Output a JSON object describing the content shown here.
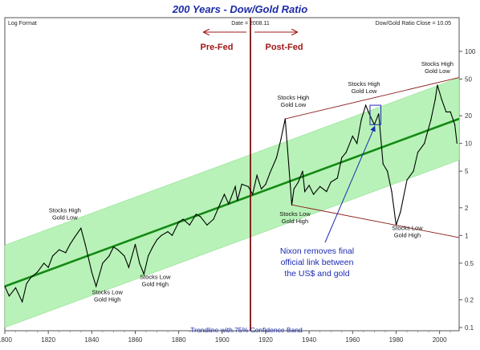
{
  "chart_data": {
    "type": "line",
    "title": "200 Years - Dow/Gold Ratio",
    "scale_label": "Log Format",
    "date_readout": "Date = 2008.11",
    "close_readout": "Dow/Gold Ratio Close = 10.05",
    "y_scale": "log",
    "ylim": [
      0.1,
      100
    ],
    "xlim": [
      1800,
      2009
    ],
    "x_ticks": [
      1800,
      1820,
      1840,
      1860,
      1880,
      1900,
      1920,
      1940,
      1960,
      1980,
      2000
    ],
    "y_ticks": [
      0.1,
      0.2,
      0.5,
      1,
      2,
      5,
      10,
      20,
      50,
      100
    ],
    "y_tick_labels": [
      "0.1",
      "0.2",
      "0.5",
      "1",
      "2",
      "5",
      "10",
      "20",
      "50",
      "100"
    ],
    "fed_year": 1913,
    "region_labels": {
      "before": "Pre-Fed",
      "after": "Post-Fed"
    },
    "trendline": {
      "start": [
        1800,
        0.28
      ],
      "end": [
        2009,
        18.5
      ]
    },
    "confidence_band_ratio": 2.8,
    "channel_lines": [
      {
        "from": [
          1929,
          18.5
        ],
        "to": [
          2009,
          52
        ]
      },
      {
        "from": [
          1932,
          2.15
        ],
        "to": [
          2009,
          0.95
        ]
      }
    ],
    "highlight_box": {
      "x": [
        1968,
        1973
      ],
      "y": [
        16,
        26
      ]
    },
    "series": [
      {
        "x": [
          1800,
          1802,
          1805,
          1808,
          1810,
          1812,
          1815,
          1818,
          1820,
          1822,
          1825,
          1828,
          1830,
          1832,
          1835,
          1837,
          1840,
          1842,
          1845,
          1848,
          1850,
          1852,
          1855,
          1857,
          1860,
          1862,
          1864,
          1866,
          1868,
          1870,
          1872,
          1875,
          1877,
          1880,
          1882,
          1885,
          1888,
          1890,
          1893,
          1896,
          1899,
          1901,
          1903,
          1906,
          1907,
          1909,
          1912,
          1914,
          1916,
          1918,
          1920,
          1922,
          1925,
          1927,
          1929,
          1930,
          1932,
          1933,
          1935,
          1937,
          1938,
          1940,
          1942,
          1945,
          1948,
          1950,
          1953,
          1955,
          1957,
          1960,
          1962,
          1964,
          1966,
          1968,
          1970,
          1972,
          1974,
          1976,
          1978,
          1980,
          1982,
          1985,
          1988,
          1990,
          1993,
          1996,
          1998,
          1999,
          2001,
          2003,
          2005,
          2007,
          2008
        ],
        "values": [
          0.28,
          0.22,
          0.27,
          0.19,
          0.3,
          0.35,
          0.4,
          0.5,
          0.45,
          0.6,
          0.7,
          0.65,
          0.8,
          0.95,
          1.2,
          0.8,
          0.4,
          0.28,
          0.5,
          0.6,
          0.75,
          0.7,
          0.6,
          0.45,
          0.8,
          0.5,
          0.38,
          0.6,
          0.75,
          0.9,
          1.0,
          1.1,
          1.0,
          1.4,
          1.5,
          1.3,
          1.7,
          1.6,
          1.3,
          1.5,
          2.2,
          2.8,
          2.2,
          3.4,
          2.4,
          3.6,
          3.4,
          2.8,
          4.5,
          3.2,
          3.6,
          4.8,
          7.0,
          11,
          18.5,
          9.0,
          2.15,
          3.2,
          3.8,
          5.0,
          3.0,
          3.5,
          2.8,
          3.4,
          3.0,
          3.8,
          4.2,
          7.0,
          8.0,
          12,
          10,
          18,
          26,
          20,
          16,
          21,
          6.0,
          5.0,
          3.0,
          1.3,
          1.8,
          4.0,
          5.0,
          8.0,
          10,
          18,
          30,
          43,
          30,
          22,
          22,
          16,
          10.05
        ]
      }
    ],
    "annotations": [
      {
        "label": [
          "Stocks High",
          "Gold Low"
        ],
        "near": [
          1835,
          1.2
        ]
      },
      {
        "label": [
          "Stocks Low",
          "Gold High"
        ],
        "near": [
          1842,
          0.28
        ]
      },
      {
        "label": [
          "Stocks Low",
          "Gold High"
        ],
        "near": [
          1864,
          0.38
        ]
      },
      {
        "label": [
          "Stocks High",
          "Gold Low"
        ],
        "near": [
          1929,
          18.5
        ]
      },
      {
        "label": [
          "Stocks Low",
          "Gold High"
        ],
        "near": [
          1932,
          2.15
        ]
      },
      {
        "label": [
          "Stocks High",
          "Gold Low"
        ],
        "near": [
          1966,
          26
        ]
      },
      {
        "label": [
          "Stocks Low",
          "Gold High"
        ],
        "near": [
          1980,
          1.3
        ]
      },
      {
        "label": [
          "Stocks High",
          "Gold Low"
        ],
        "near": [
          1999,
          43
        ]
      }
    ],
    "callout": [
      "Nixon removes final",
      "official link between",
      "the US$ and gold"
    ],
    "band_caption": "Trendline with 75% Confidence Band",
    "grid": false,
    "colors": {
      "title": "#1c2ba8",
      "series": "#000000",
      "trendline": "#138a13",
      "band": "#b8f2b8",
      "fed_line": "#7a1010",
      "channel": "#8a1a1a",
      "callout": "#1c2bb0"
    }
  }
}
